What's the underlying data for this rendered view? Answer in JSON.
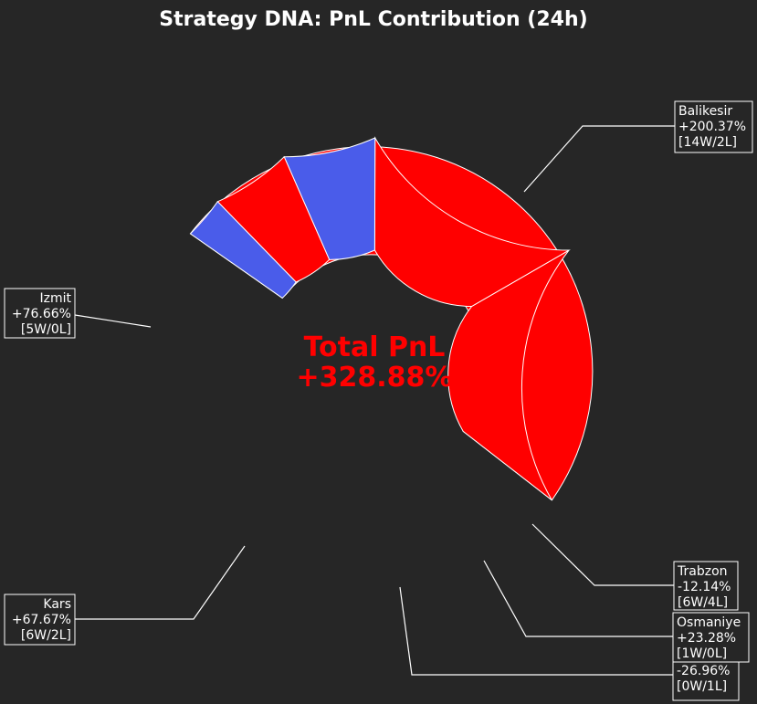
{
  "colors": {
    "background": "#262626",
    "positive": "#ff0000",
    "negative": "#4a5cea",
    "text": "#ffffff",
    "center_text": "#ff0000"
  },
  "chart_data": {
    "type": "pie",
    "style": "donut",
    "title": "Strategy DNA: PnL Contribution (24h)",
    "center_label": {
      "line1": "Total PnL",
      "line2": "+328.88%"
    },
    "slices": [
      {
        "name": "Balikesir",
        "value": 200.37,
        "label": "+200.37%",
        "record": "[14W/2L]"
      },
      {
        "name": "Izmit",
        "value": 76.66,
        "label": "+76.66%",
        "record": "[5W/0L]"
      },
      {
        "name": "Kars",
        "value": 67.67,
        "label": "+67.67%",
        "record": "[6W/2L]"
      },
      {
        "name": "",
        "value": -26.96,
        "label": "-26.96%",
        "record": "[0W/1L]"
      },
      {
        "name": "Osmaniye",
        "value": 23.28,
        "label": "+23.28%",
        "record": "[1W/0L]"
      },
      {
        "name": "Trabzon",
        "value": -12.14,
        "label": "-12.14%",
        "record": "[6W/4L]"
      }
    ]
  }
}
